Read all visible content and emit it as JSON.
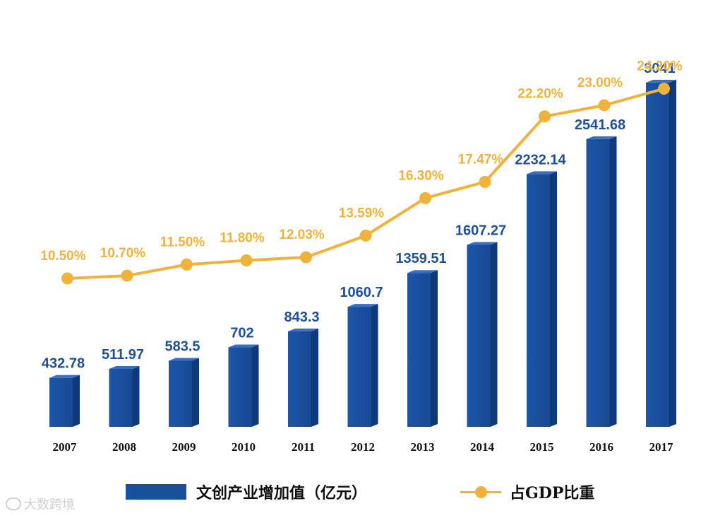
{
  "chart_data": {
    "type": "bar",
    "categories": [
      "2007",
      "2008",
      "2009",
      "2010",
      "2011",
      "2012",
      "2013",
      "2014",
      "2015",
      "2016",
      "2017"
    ],
    "series": [
      {
        "name": "文创产业增加值（亿元）",
        "kind": "bar",
        "values": [
          432.78,
          511.97,
          583.5,
          702,
          843.3,
          1060.7,
          1359.51,
          1607.27,
          2232.14,
          2541.68,
          3041
        ],
        "labels": [
          "432.78",
          "511.97",
          "583.5",
          "702",
          "843.3",
          "1060.7",
          "1359.51",
          "1607.27",
          "2232.14",
          "2541.68",
          "3041"
        ],
        "color": "#1a4f9c"
      },
      {
        "name": "占GDP比重",
        "kind": "line",
        "values": [
          10.5,
          10.7,
          11.5,
          11.8,
          12.03,
          13.59,
          16.3,
          17.47,
          22.2,
          23.0,
          24.2
        ],
        "labels": [
          "10.50%",
          "10.70%",
          "11.50%",
          "11.80%",
          "12.03%",
          "13.59%",
          "16.30%",
          "17.47%",
          "22.20%",
          "23.00%",
          "24.20%"
        ],
        "color": "#f0b23a"
      }
    ],
    "legend": "bottom"
  },
  "legend": {
    "bar_label": "文创产业增加值（亿元）",
    "line_label": "占GDP比重"
  },
  "watermark": {
    "text": "大数跨境"
  }
}
